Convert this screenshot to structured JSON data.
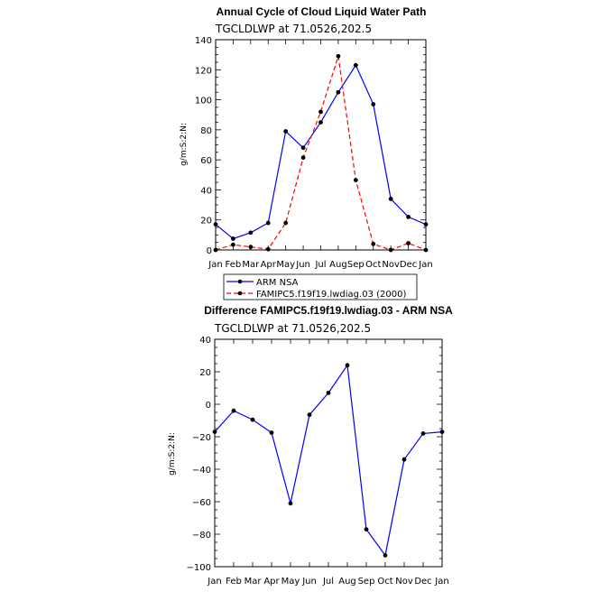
{
  "chart_data": [
    {
      "type": "line",
      "title": "Annual Cycle of Cloud Liquid Water Path",
      "subtitle": "TGCLDLWP  at 71.0526,202.5",
      "xlabel": "",
      "ylabel": "g/m:S:2:N:",
      "categories": [
        "Jan",
        "Feb",
        "Mar",
        "Apr",
        "May",
        "Jun",
        "Jul",
        "Aug",
        "Sep",
        "Oct",
        "Nov",
        "Dec",
        "Jan"
      ],
      "ylim": [
        0,
        140
      ],
      "yticks": [
        0,
        20,
        40,
        60,
        80,
        100,
        120,
        140
      ],
      "series": [
        {
          "name": "ARM NSA",
          "color": "#0000ff",
          "dash": "solid",
          "values": [
            17,
            7.5,
            11.5,
            18,
            79,
            68,
            85,
            105,
            123,
            97,
            34,
            22,
            17
          ]
        },
        {
          "name": "FAMIPC5.f19f19.lwdiag.03 (2000)",
          "color": "#ff0000",
          "dash": "dashed",
          "values": [
            0,
            3.5,
            2,
            0.5,
            18,
            61.5,
            92,
            129,
            46.5,
            4,
            0,
            4.5,
            0
          ]
        }
      ],
      "legend": "below"
    },
    {
      "type": "line",
      "title": "Difference FAMIPC5.f19f19.lwdiag.03 - ARM NSA",
      "subtitle": "TGCLDLWP  at 71.0526,202.5",
      "xlabel": "",
      "ylabel": "g/m:S:2:N:",
      "categories": [
        "Jan",
        "Feb",
        "Mar",
        "Apr",
        "May",
        "Jun",
        "Jul",
        "Aug",
        "Sep",
        "Oct",
        "Nov",
        "Dec",
        "Jan"
      ],
      "ylim": [
        -100,
        40
      ],
      "yticks": [
        -100,
        -80,
        -60,
        -40,
        -20,
        0,
        20,
        40
      ],
      "series": [
        {
          "name": "Difference",
          "color": "#0000ff",
          "dash": "solid",
          "values": [
            -17,
            -4,
            -9.5,
            -17.5,
            -61,
            -6.5,
            7,
            24,
            -77,
            -93,
            -34,
            -18,
            -17
          ]
        }
      ]
    }
  ]
}
